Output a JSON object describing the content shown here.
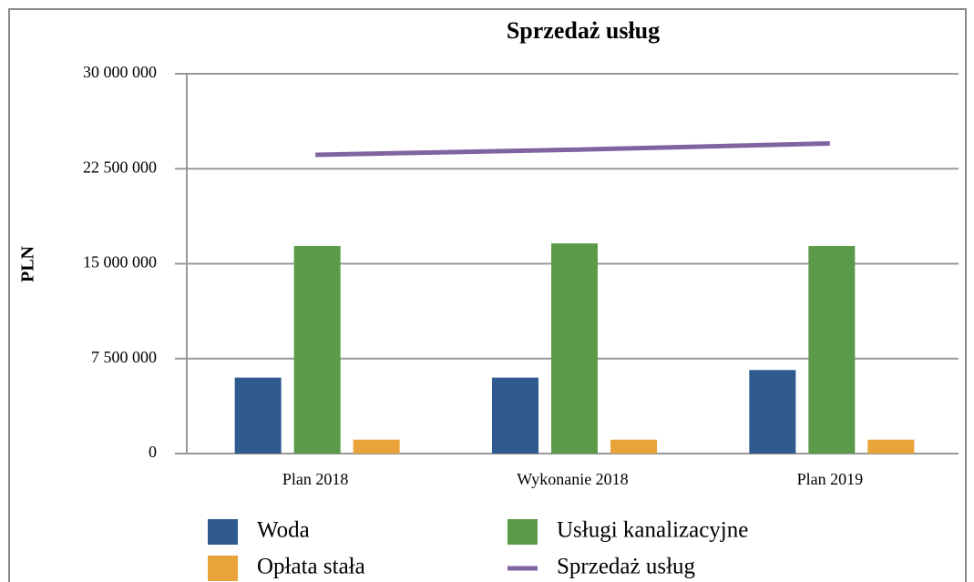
{
  "chart_data": {
    "type": "bar",
    "title": "Sprzedaż usług",
    "y_label": "PLN",
    "categories": [
      "Plan 2018",
      "Wykonanie 2018",
      "Plan 2019"
    ],
    "series": [
      {
        "name": "Woda",
        "color": "#2e5a8e",
        "values": [
          6000000,
          6000000,
          6600000
        ]
      },
      {
        "name": "Usługi kanalizacyjne",
        "color": "#5b9a48",
        "values": [
          16400000,
          16600000,
          16400000
        ]
      },
      {
        "name": "Opłata stała",
        "color": "#e8a33a",
        "values": [
          1100000,
          1100000,
          1100000
        ]
      },
      {
        "name": "Sprzedaż usług",
        "color": "#8064a2",
        "type": "line",
        "values": [
          23600000,
          24000000,
          24500000
        ]
      }
    ],
    "ylim": [
      0,
      30000000
    ],
    "yticks": [
      0,
      {
        "value": 7500000,
        "label": "7 500 000"
      },
      {
        "value": 15000000,
        "label": "15 000 000"
      },
      {
        "value": 22500000,
        "label": "22 500 000"
      },
      {
        "value": 30000000,
        "label": "30 000 000"
      }
    ],
    "grid": true,
    "legend": "bottom"
  }
}
